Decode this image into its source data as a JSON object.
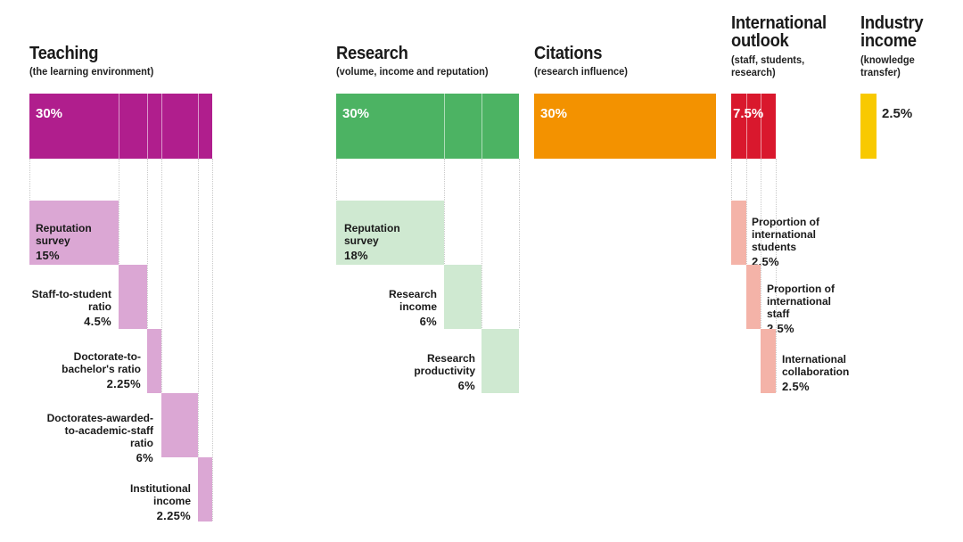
{
  "colors": {
    "teaching": "#b01e8d",
    "teaching_light": "#dba7d4",
    "research": "#4cb363",
    "research_light": "#cfe9d1",
    "citations": "#f39200",
    "international": "#d9182d",
    "international_light": "#f4b3a8",
    "industry": "#f8c900"
  },
  "pillars": {
    "teaching": {
      "title": "Teaching",
      "subtitle": "(the learning environment)",
      "weight": "30%",
      "components": [
        {
          "label": "Reputation\nsurvey",
          "value": "15%"
        },
        {
          "label": "Staff-to-student\nratio",
          "value": "4.5%"
        },
        {
          "label": "Doctorate-to-\nbachelor's ratio",
          "value": "2.25%"
        },
        {
          "label": "Doctorates-awarded-\nto-academic-staff\nratio",
          "value": "6%"
        },
        {
          "label": "Institutional\nincome",
          "value": "2.25%"
        }
      ]
    },
    "research": {
      "title": "Research",
      "subtitle": "(volume, income and reputation)",
      "weight": "30%",
      "components": [
        {
          "label": "Reputation\nsurvey",
          "value": "18%"
        },
        {
          "label": "Research\nincome",
          "value": "6%"
        },
        {
          "label": "Research\nproductivity",
          "value": "6%"
        }
      ]
    },
    "citations": {
      "title": "Citations",
      "subtitle": "(research influence)",
      "weight": "30%"
    },
    "international": {
      "title": "International\noutlook",
      "subtitle": "(staff, students,\nresearch)",
      "weight": "7.5%",
      "components": [
        {
          "label": "Proportion of\ninternational\nstudents",
          "value": "2.5%"
        },
        {
          "label": "Proportion of\ninternational\nstaff",
          "value": "2.5%"
        },
        {
          "label": "International\ncollaboration",
          "value": "2.5%"
        }
      ]
    },
    "industry": {
      "title": "Industry\nincome",
      "subtitle": "(knowledge\ntransfer)",
      "weight": "2.5%"
    }
  }
}
